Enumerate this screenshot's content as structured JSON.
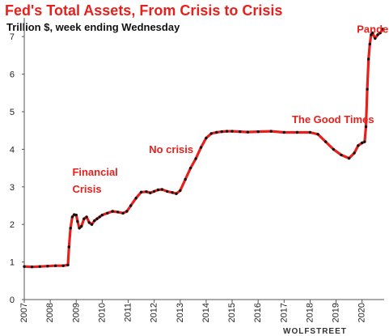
{
  "chart_data": {
    "type": "line",
    "title": "Fed's Total Assets, From Crisis to Crisis",
    "subtitle": "Trillion $, week ending Wednesday",
    "xlabel": "",
    "ylabel": "",
    "xlim": [
      2007,
      2020.85
    ],
    "ylim": [
      0,
      7.5
    ],
    "grid": false,
    "legend": "none",
    "x_ticks": [
      "2007",
      "2008",
      "2009",
      "2010",
      "2011",
      "2012",
      "2013",
      "2014",
      "2015",
      "2016",
      "2017",
      "2018",
      "2019",
      "2020"
    ],
    "y_ticks": [
      "0",
      "1",
      "2",
      "3",
      "4",
      "5",
      "6",
      "7"
    ],
    "annotations": [
      {
        "text": "Financial",
        "x": 2008.85,
        "y": 3.3
      },
      {
        "text": "Crisis",
        "x": 2008.85,
        "y": 2.85
      },
      {
        "text": "No crisis",
        "x": 2011.8,
        "y": 3.9
      },
      {
        "text": "The Good Times",
        "x": 2017.3,
        "y": 4.7
      },
      {
        "text": "Pandemic",
        "x": 2019.8,
        "y": 7.1
      }
    ],
    "watermark": "WOLFSTREET",
    "colors": {
      "line": "#e8201c",
      "markers": "#111111",
      "title": "#e8201c",
      "annotation": "#e8201c"
    },
    "series": [
      {
        "name": "",
        "x": [
          2007.0,
          2007.3,
          2007.6,
          2007.9,
          2008.2,
          2008.5,
          2008.68,
          2008.72,
          2008.78,
          2008.85,
          2008.92,
          2009.0,
          2009.05,
          2009.12,
          2009.2,
          2009.3,
          2009.4,
          2009.5,
          2009.6,
          2009.7,
          2009.8,
          2009.9,
          2010.0,
          2010.2,
          2010.4,
          2010.6,
          2010.8,
          2010.95,
          2011.1,
          2011.3,
          2011.5,
          2011.7,
          2011.85,
          2012.0,
          2012.15,
          2012.3,
          2012.5,
          2012.7,
          2012.85,
          2013.0,
          2013.2,
          2013.4,
          2013.6,
          2013.8,
          2014.0,
          2014.2,
          2014.4,
          2014.6,
          2014.8,
          2015.0,
          2015.3,
          2015.6,
          2016.0,
          2016.5,
          2017.0,
          2017.5,
          2018.0,
          2018.3,
          2018.6,
          2018.9,
          2019.2,
          2019.5,
          2019.7,
          2019.85,
          2020.0,
          2020.1,
          2020.15,
          2020.2,
          2020.25,
          2020.3,
          2020.35,
          2020.4,
          2020.5,
          2020.6,
          2020.7,
          2020.8
        ],
        "values": [
          0.88,
          0.87,
          0.88,
          0.89,
          0.9,
          0.9,
          0.92,
          1.4,
          1.9,
          2.2,
          2.26,
          2.25,
          2.08,
          1.9,
          1.95,
          2.15,
          2.2,
          2.05,
          2.0,
          2.1,
          2.15,
          2.2,
          2.25,
          2.3,
          2.35,
          2.33,
          2.3,
          2.35,
          2.5,
          2.7,
          2.86,
          2.87,
          2.84,
          2.88,
          2.92,
          2.93,
          2.88,
          2.85,
          2.82,
          2.9,
          3.2,
          3.5,
          3.75,
          4.05,
          4.3,
          4.42,
          4.45,
          4.47,
          4.48,
          4.48,
          4.47,
          4.46,
          4.47,
          4.48,
          4.45,
          4.45,
          4.45,
          4.4,
          4.2,
          4.0,
          3.85,
          3.76,
          3.9,
          4.1,
          4.17,
          4.2,
          4.6,
          5.6,
          6.4,
          6.8,
          7.05,
          7.1,
          6.95,
          7.05,
          7.1,
          7.2
        ]
      }
    ]
  }
}
